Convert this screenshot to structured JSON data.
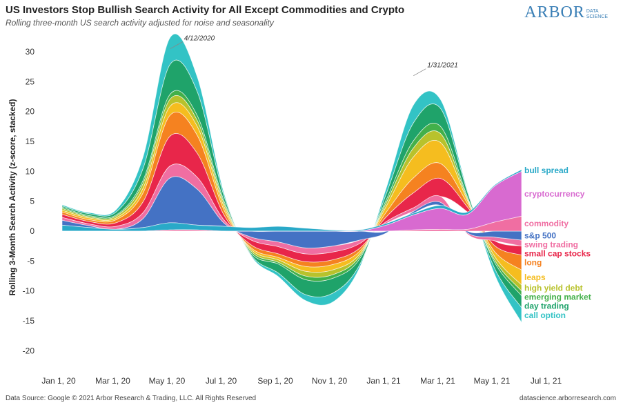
{
  "chart_data": {
    "type": "area",
    "title": "US Investors Stop Bullish Search Activity for All Except Commodities and Crypto",
    "subtitle": "Rolling three-month US search activity adjusted for noise and seasonality",
    "ylabel": "Rolling 3-Month Search Activity (z-score, stacked)",
    "xlabel": "",
    "ylim": [
      -22,
      32
    ],
    "yticks": [
      30,
      25,
      20,
      15,
      10,
      5,
      0,
      -5,
      -10,
      -15,
      -20
    ],
    "xticks": [
      "Jan 1, 20",
      "Mar 1, 20",
      "May 1, 20",
      "Jul 1, 20",
      "Sep 1, 20",
      "Nov 1, 20",
      "Jan 1, 21",
      "Mar 1, 21",
      "May 1, 21",
      "Jul 1, 21"
    ],
    "x": [
      "Dec 2019",
      "Jan 2020",
      "Feb 2020",
      "Mar 2020",
      "Apr 2020",
      "May 2020",
      "Jun 2020",
      "Jul 2020",
      "Aug 2020",
      "Sep 2020",
      "Oct 2020",
      "Nov 2020",
      "Dec 2020",
      "Jan 2021",
      "Feb 2021",
      "Mar 2021",
      "Apr 2021",
      "May 2021"
    ],
    "series": [
      {
        "name": "commodity",
        "color": "#f06ea2",
        "values": [
          0,
          0,
          0,
          0,
          0.2,
          0.2,
          0,
          0,
          0,
          0,
          0,
          0,
          0,
          0.2,
          0.3,
          0.3,
          1.5,
          2.5
        ]
      },
      {
        "name": "cryptocurrency",
        "color": "#d86ad0",
        "values": [
          0,
          0,
          0,
          0,
          0,
          0,
          0,
          0,
          0,
          0,
          0,
          0,
          1.0,
          2.5,
          3.5,
          2.5,
          6.0,
          7.5
        ]
      },
      {
        "name": "bull spread",
        "color": "#29a9c8",
        "values": [
          1.0,
          0.6,
          0.3,
          0.6,
          1.2,
          0.8,
          0.8,
          0.6,
          0.8,
          0.5,
          0.2,
          0.2,
          0.3,
          0.3,
          0.5,
          0.4,
          0.2,
          0.3
        ]
      },
      {
        "name": "s&p 500",
        "color": "#4472c4",
        "values": [
          0.8,
          0.3,
          0,
          1.5,
          7.5,
          6.0,
          0.5,
          -1.0,
          -1.8,
          -2.8,
          -2.5,
          -1.5,
          -0.3,
          0.3,
          0.5,
          -0.3,
          -1.0,
          -1.5
        ]
      },
      {
        "name": "swing trading",
        "color": "#f06ea2",
        "values": [
          0.5,
          0.3,
          0.5,
          1.0,
          2.0,
          2.0,
          0.5,
          -0.5,
          -0.8,
          -1.0,
          -1.0,
          -0.6,
          0.3,
          0.6,
          1.0,
          -0.2,
          -0.6,
          -1.0
        ]
      },
      {
        "name": "small cap stocks",
        "color": "#e8264a",
        "values": [
          0.5,
          0.4,
          0.6,
          1.8,
          5.0,
          4.0,
          0.8,
          -0.8,
          -1.2,
          -1.3,
          -1.3,
          -0.8,
          0.8,
          2.5,
          3.0,
          0.8,
          -0.8,
          -1.5
        ]
      },
      {
        "name": "long",
        "color": "#f58220",
        "values": [
          0.4,
          0.3,
          0.5,
          1.5,
          3.5,
          3.0,
          0.8,
          -0.5,
          -0.6,
          -0.8,
          -0.8,
          -0.5,
          0.8,
          2.5,
          2.5,
          0.6,
          -1.0,
          -2.5
        ]
      },
      {
        "name": "leaps",
        "color": "#f5bd1f",
        "values": [
          0.3,
          0.3,
          0.3,
          0.8,
          1.5,
          1.5,
          0.6,
          -0.3,
          -0.4,
          -0.8,
          -0.9,
          -0.5,
          1.0,
          3.5,
          3.5,
          0.5,
          -0.8,
          -2.5
        ]
      },
      {
        "name": "high yield debt",
        "color": "#b8c22c",
        "values": [
          0.3,
          0.2,
          0.3,
          0.8,
          1.2,
          1.0,
          0.5,
          -0.3,
          -0.4,
          -0.8,
          -0.8,
          -0.4,
          0.6,
          1.5,
          1.5,
          0.3,
          -0.6,
          -1.0
        ]
      },
      {
        "name": "emerging market",
        "color": "#43b04a",
        "values": [
          0.2,
          0.2,
          0.2,
          0.5,
          0.8,
          0.8,
          0.4,
          -0.3,
          -0.3,
          -0.6,
          -0.6,
          -0.4,
          0.5,
          1.2,
          1.2,
          0.3,
          -0.4,
          -0.8
        ]
      },
      {
        "name": "day trading",
        "color": "#1fa36a",
        "values": [
          0.2,
          0.3,
          0.5,
          2.0,
          5.0,
          4.0,
          0.8,
          -0.3,
          -1.5,
          -2.5,
          -2.5,
          -1.0,
          1.0,
          3.0,
          3.0,
          0.8,
          -1.0,
          -2.0
        ]
      },
      {
        "name": "call option",
        "color": "#33c3c5",
        "values": [
          0.2,
          0.2,
          0.4,
          2.0,
          4.5,
          2.5,
          0.5,
          -0.2,
          -0.6,
          -1.0,
          -1.5,
          -0.5,
          1.0,
          3.0,
          1.5,
          0.3,
          -1.0,
          -2.5
        ]
      }
    ],
    "annotations": [
      {
        "text": "4/12/2020",
        "x": "Apr 2020",
        "y": 30.5
      },
      {
        "text": "1/31/2021",
        "x": "Jan 2021",
        "y": 26.0
      }
    ],
    "grid": false,
    "legend": "direct labels at right"
  },
  "header": {
    "title": "US Investors Stop Bullish Search Activity for All Except Commodities and Crypto",
    "subtitle": "Rolling three-month US search activity adjusted for noise and seasonality",
    "logo_word": "ARBOR",
    "logo_sub1": "DATA",
    "logo_sub2": "SCIENCE"
  },
  "footer": {
    "source": "Data Source: Google © 2021 Arbor Research & Trading, LLC. All Rights Reserved",
    "site": "datascience.arborresearch.com"
  }
}
